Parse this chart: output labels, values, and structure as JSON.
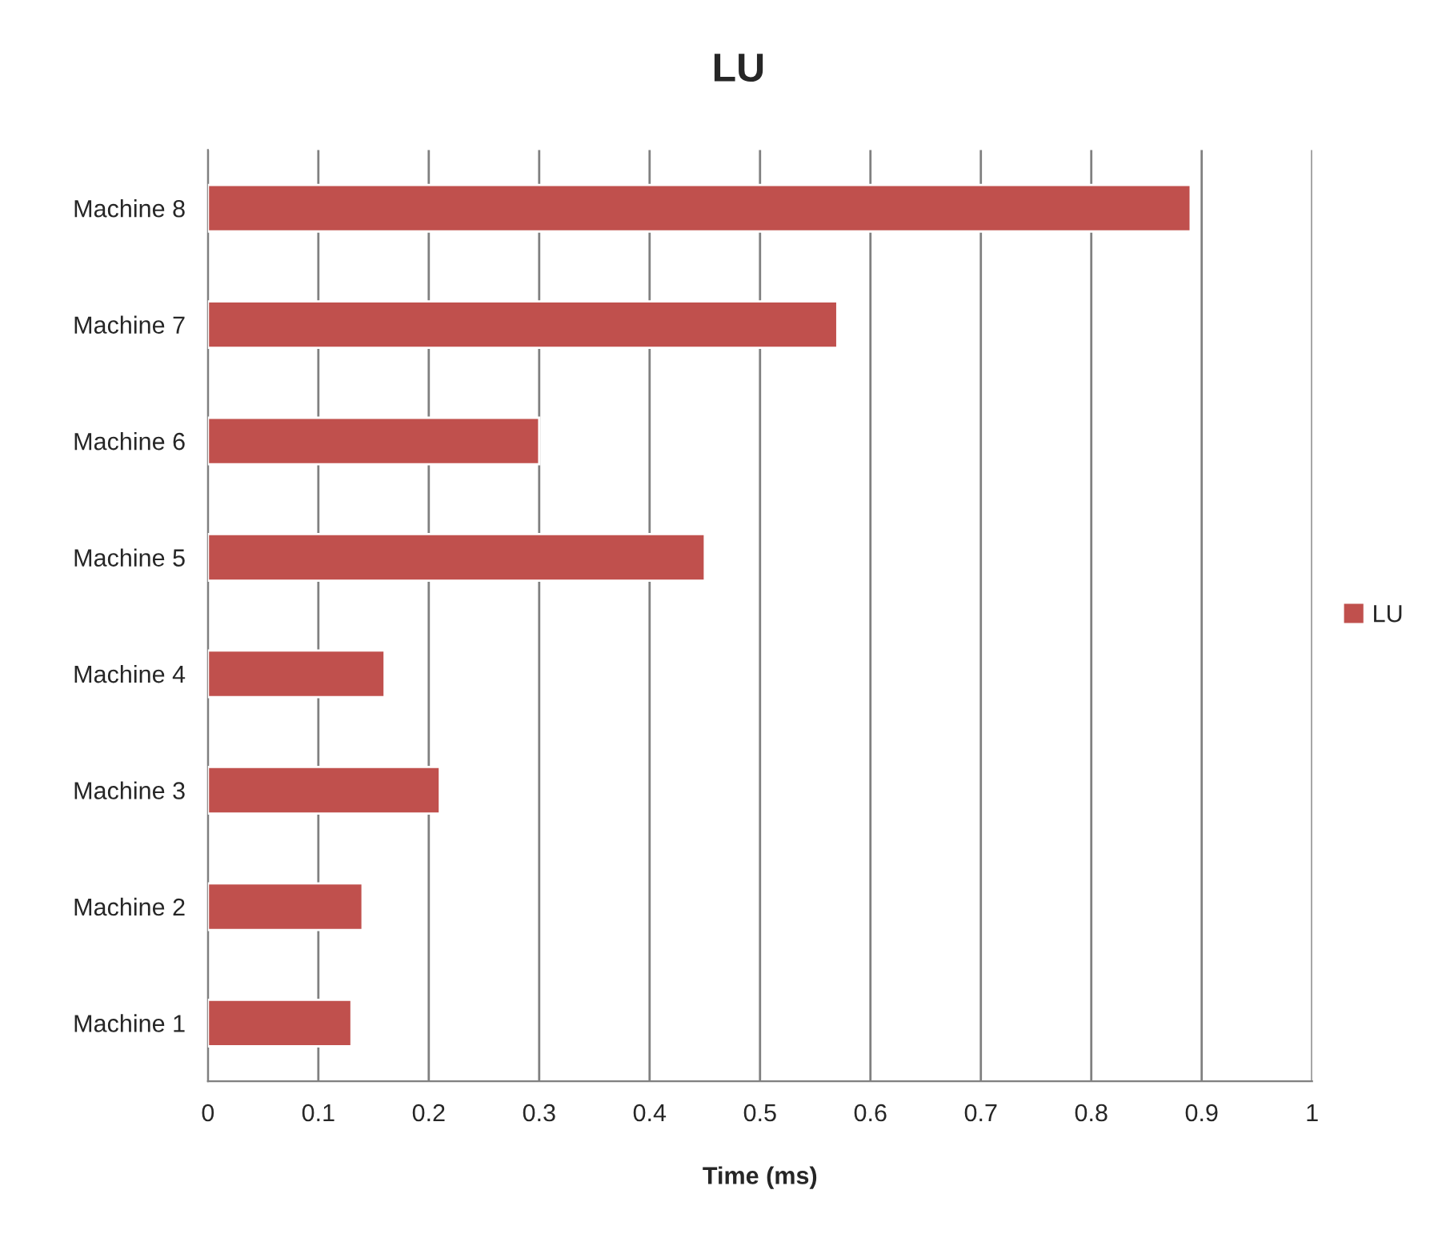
{
  "chart_data": {
    "type": "bar",
    "orientation": "horizontal",
    "title": "LU",
    "xlabel": "Time (ms)",
    "categories": [
      "Machine 8",
      "Machine 7",
      "Machine 6",
      "Machine 5",
      "Machine 4",
      "Machine 3",
      "Machine 2",
      "Machine 1"
    ],
    "series": [
      {
        "name": "LU",
        "color": "#c0504d",
        "values": [
          0.89,
          0.57,
          0.3,
          0.45,
          0.16,
          0.21,
          0.14,
          0.13
        ]
      }
    ],
    "xlim": [
      0,
      1
    ],
    "xticks": [
      0,
      0.1,
      0.2,
      0.3,
      0.4,
      0.5,
      0.6,
      0.7,
      0.8,
      0.9,
      1
    ],
    "grid": "x",
    "legend": "right"
  }
}
